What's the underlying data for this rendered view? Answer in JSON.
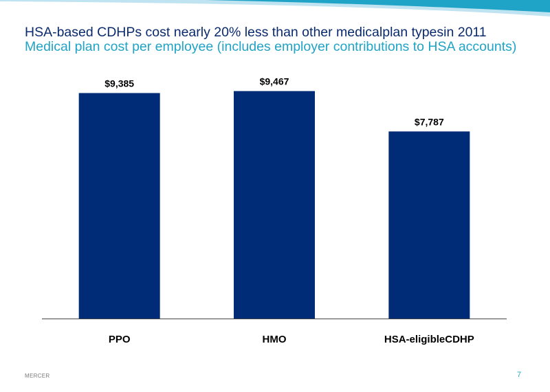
{
  "header": {
    "title": "HSA-based CDHPs cost nearly 20% less than other medicalplan typesin 2011",
    "subtitle": "Medical plan cost per employee (includes employer contributions to HSA accounts)"
  },
  "footer": {
    "brand": "MERCER",
    "page_number": "7"
  },
  "colors": {
    "bar": "#002c77",
    "title": "#0a2a6e",
    "subtitle": "#1fa3c6",
    "band_light": "#bfe3f0",
    "band_dark": "#1fa3c6"
  },
  "chart_data": {
    "type": "bar",
    "title": "Medical plan cost per employee (includes employer contributions to HSA accounts)",
    "categories": [
      "PPO",
      "HMO",
      "HSA-eligibleCDHP"
    ],
    "values": [
      9385,
      9467,
      7787
    ],
    "data_labels": [
      "$9,385",
      "$9,467",
      "$7,787"
    ],
    "ylim": [
      0,
      12000
    ],
    "grid": false,
    "legend": "none"
  }
}
